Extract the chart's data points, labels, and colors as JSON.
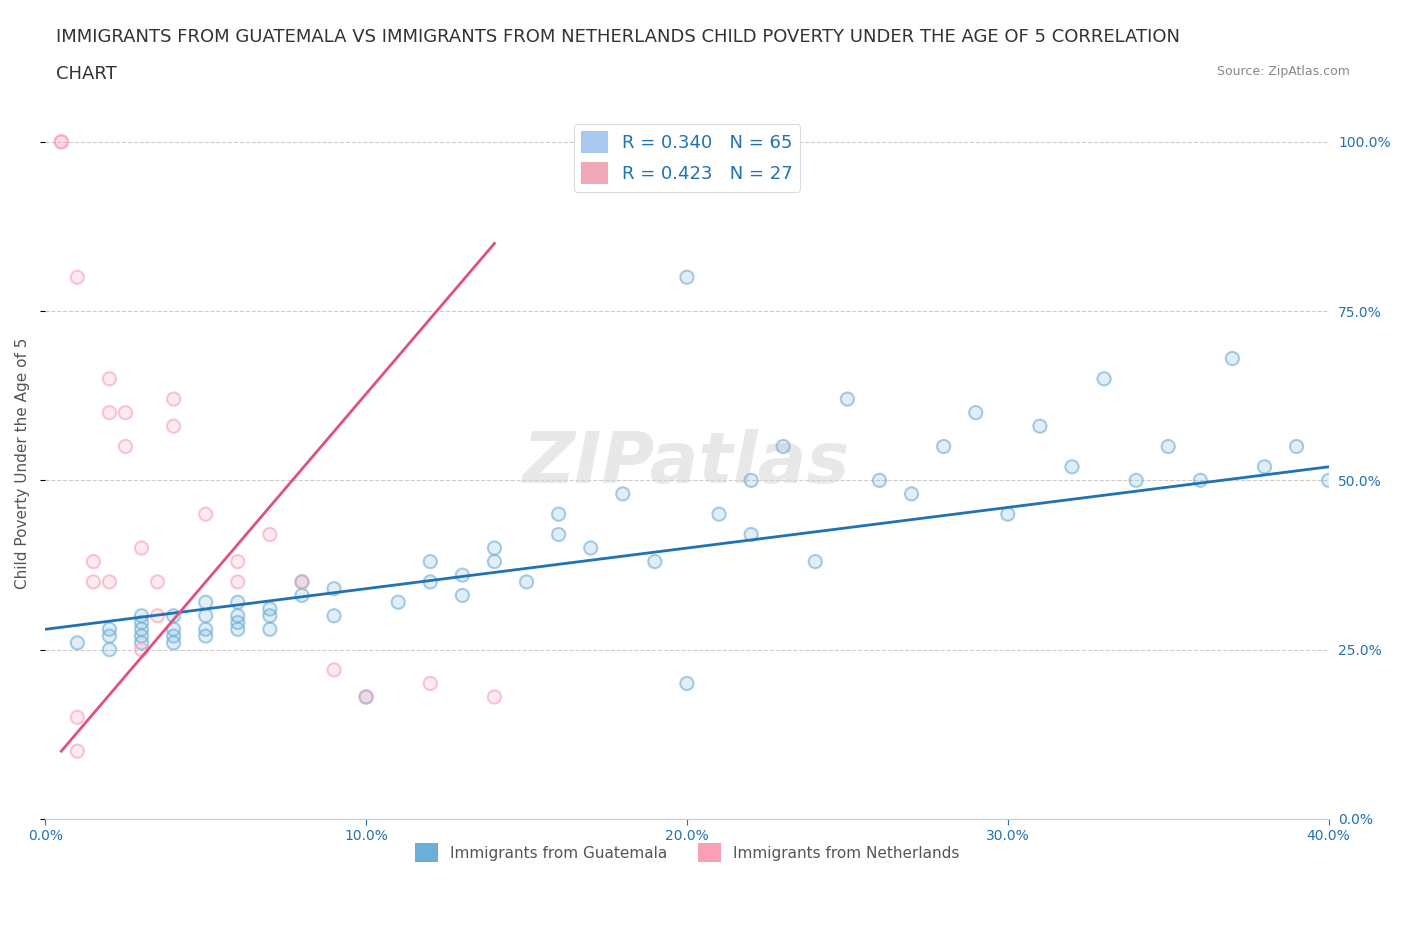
{
  "title_line1": "IMMIGRANTS FROM GUATEMALA VS IMMIGRANTS FROM NETHERLANDS CHILD POVERTY UNDER THE AGE OF 5 CORRELATION",
  "title_line2": "CHART",
  "source": "Source: ZipAtlas.com",
  "ylabel": "Child Poverty Under the Age of 5",
  "xlim": [
    0.0,
    0.4
  ],
  "ylim": [
    0.0,
    1.05
  ],
  "legend_entries": [
    {
      "label": "R = 0.340   N = 65",
      "color": "#a8c8f0"
    },
    {
      "label": "R = 0.423   N = 27",
      "color": "#f0a8b8"
    }
  ],
  "blue_scatter_x": [
    0.01,
    0.02,
    0.02,
    0.02,
    0.03,
    0.03,
    0.03,
    0.03,
    0.03,
    0.04,
    0.04,
    0.04,
    0.04,
    0.05,
    0.05,
    0.05,
    0.05,
    0.06,
    0.06,
    0.06,
    0.06,
    0.07,
    0.07,
    0.07,
    0.08,
    0.08,
    0.09,
    0.09,
    0.1,
    0.11,
    0.12,
    0.12,
    0.13,
    0.13,
    0.14,
    0.14,
    0.15,
    0.16,
    0.16,
    0.17,
    0.18,
    0.19,
    0.2,
    0.21,
    0.22,
    0.22,
    0.23,
    0.24,
    0.25,
    0.26,
    0.27,
    0.28,
    0.29,
    0.3,
    0.31,
    0.32,
    0.33,
    0.34,
    0.35,
    0.36,
    0.37,
    0.38,
    0.39,
    0.4,
    0.2
  ],
  "blue_scatter_y": [
    0.26,
    0.27,
    0.28,
    0.25,
    0.28,
    0.27,
    0.26,
    0.29,
    0.3,
    0.28,
    0.27,
    0.26,
    0.3,
    0.28,
    0.3,
    0.32,
    0.27,
    0.29,
    0.3,
    0.28,
    0.32,
    0.31,
    0.28,
    0.3,
    0.33,
    0.35,
    0.3,
    0.34,
    0.18,
    0.32,
    0.35,
    0.38,
    0.33,
    0.36,
    0.38,
    0.4,
    0.35,
    0.42,
    0.45,
    0.4,
    0.48,
    0.38,
    0.2,
    0.45,
    0.5,
    0.42,
    0.55,
    0.38,
    0.62,
    0.5,
    0.48,
    0.55,
    0.6,
    0.45,
    0.58,
    0.52,
    0.65,
    0.5,
    0.55,
    0.5,
    0.68,
    0.52,
    0.55,
    0.5,
    0.8
  ],
  "pink_scatter_x": [
    0.005,
    0.005,
    0.01,
    0.01,
    0.01,
    0.015,
    0.015,
    0.02,
    0.02,
    0.02,
    0.025,
    0.025,
    0.03,
    0.03,
    0.035,
    0.035,
    0.04,
    0.04,
    0.05,
    0.06,
    0.06,
    0.07,
    0.08,
    0.09,
    0.1,
    0.12,
    0.14
  ],
  "pink_scatter_y": [
    1.0,
    1.0,
    0.8,
    0.15,
    0.1,
    0.38,
    0.35,
    0.65,
    0.6,
    0.35,
    0.6,
    0.55,
    0.4,
    0.25,
    0.35,
    0.3,
    0.62,
    0.58,
    0.45,
    0.38,
    0.35,
    0.42,
    0.35,
    0.22,
    0.18,
    0.2,
    0.18
  ],
  "blue_line_x": [
    0.0,
    0.4
  ],
  "blue_line_y": [
    0.28,
    0.52
  ],
  "pink_line_x": [
    0.005,
    0.14
  ],
  "pink_line_y": [
    0.1,
    0.85
  ],
  "scatter_color_blue": "#6baed6",
  "scatter_color_pink": "#fa9fb5",
  "line_color_blue": "#2171b5",
  "line_color_pink": "#e05080",
  "grid_color": "#cccccc",
  "background_color": "#ffffff",
  "watermark": "ZIPatlas",
  "title_fontsize": 13,
  "axis_label_fontsize": 11,
  "tick_fontsize": 10,
  "bottom_legend_blue": "Immigrants from Guatemala",
  "bottom_legend_pink": "Immigrants from Netherlands"
}
